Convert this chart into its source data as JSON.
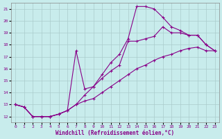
{
  "xlabel": "Windchill (Refroidissement éolien,°C)",
  "xlim": [
    -0.5,
    23.5
  ],
  "ylim": [
    11.5,
    21.5
  ],
  "yticks": [
    12,
    13,
    14,
    15,
    16,
    17,
    18,
    19,
    20,
    21
  ],
  "xticks": [
    0,
    1,
    2,
    3,
    4,
    5,
    6,
    7,
    8,
    9,
    10,
    11,
    12,
    13,
    14,
    15,
    16,
    17,
    18,
    19,
    20,
    21,
    22,
    23
  ],
  "bg_color": "#c8ecec",
  "line_color": "#880088",
  "grid_color": "#b0d0d0",
  "line1_x": [
    0,
    1,
    2,
    3,
    4,
    5,
    6,
    7,
    8,
    9,
    10,
    11,
    12,
    13,
    14,
    15,
    16,
    17,
    18,
    19,
    20,
    21,
    22,
    23
  ],
  "line1_y": [
    13.0,
    12.8,
    12.0,
    12.0,
    12.0,
    12.2,
    12.5,
    13.0,
    13.3,
    13.5,
    14.0,
    14.5,
    15.0,
    15.5,
    16.0,
    16.3,
    16.7,
    17.0,
    17.2,
    17.5,
    17.7,
    17.8,
    17.5,
    17.5
  ],
  "line2_x": [
    0,
    1,
    2,
    3,
    4,
    5,
    6,
    7,
    8,
    9,
    10,
    11,
    12,
    13,
    14,
    15,
    16,
    17,
    18,
    19,
    20,
    21,
    22,
    23
  ],
  "line2_y": [
    13.0,
    12.8,
    12.0,
    12.0,
    12.0,
    12.2,
    12.5,
    13.0,
    13.8,
    14.5,
    15.5,
    16.5,
    17.2,
    18.5,
    21.2,
    21.2,
    21.0,
    20.3,
    19.5,
    19.2,
    18.8,
    18.8,
    18.0,
    17.5
  ],
  "line3_x": [
    0,
    1,
    2,
    3,
    4,
    5,
    6,
    7,
    8,
    9,
    10,
    11,
    12,
    13,
    14,
    15,
    16,
    17,
    18,
    19,
    20,
    21,
    22,
    23
  ],
  "line3_y": [
    13.0,
    12.8,
    12.0,
    12.0,
    12.0,
    12.2,
    12.5,
    17.5,
    14.3,
    14.5,
    15.2,
    15.8,
    16.3,
    18.3,
    18.3,
    18.5,
    18.7,
    19.5,
    19.0,
    19.0,
    18.8,
    18.8,
    18.0,
    17.5
  ]
}
